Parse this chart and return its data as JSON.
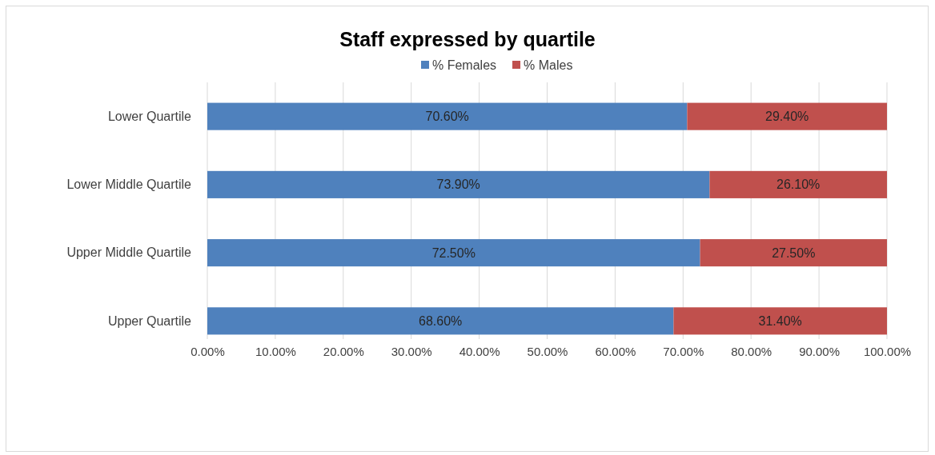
{
  "chart_data": {
    "type": "bar",
    "title": "Staff expressed by quartile",
    "orientation": "horizontal",
    "stacked": true,
    "categories": [
      "Lower Quartile",
      "Lower Middle Quartile",
      "Upper Middle Quartile",
      "Upper Quartile"
    ],
    "series": [
      {
        "name": "% Females",
        "color": "#4f81bd",
        "values": [
          70.6,
          73.9,
          72.5,
          68.6
        ],
        "value_labels": [
          "70.60%",
          "73.90%",
          "72.50%",
          "68.60%"
        ]
      },
      {
        "name": "% Males",
        "color": "#c0504d",
        "values": [
          29.4,
          26.1,
          27.5,
          31.4
        ],
        "value_labels": [
          "29.40%",
          "26.10%",
          "27.50%",
          "31.40%"
        ]
      }
    ],
    "xlim": [
      0,
      100
    ],
    "xticks": [
      {
        "value": 0,
        "label": "0.00%"
      },
      {
        "value": 10,
        "label": "10.00%"
      },
      {
        "value": 20,
        "label": "20.00%"
      },
      {
        "value": 30,
        "label": "30.00%"
      },
      {
        "value": 40,
        "label": "40.00%"
      },
      {
        "value": 50,
        "label": "50.00%"
      },
      {
        "value": 60,
        "label": "60.00%"
      },
      {
        "value": 70,
        "label": "70.00%"
      },
      {
        "value": 80,
        "label": "80.00%"
      },
      {
        "value": 90,
        "label": "90.00%"
      },
      {
        "value": 100,
        "label": "100.00%"
      }
    ],
    "grid": "x",
    "legend": "top"
  }
}
